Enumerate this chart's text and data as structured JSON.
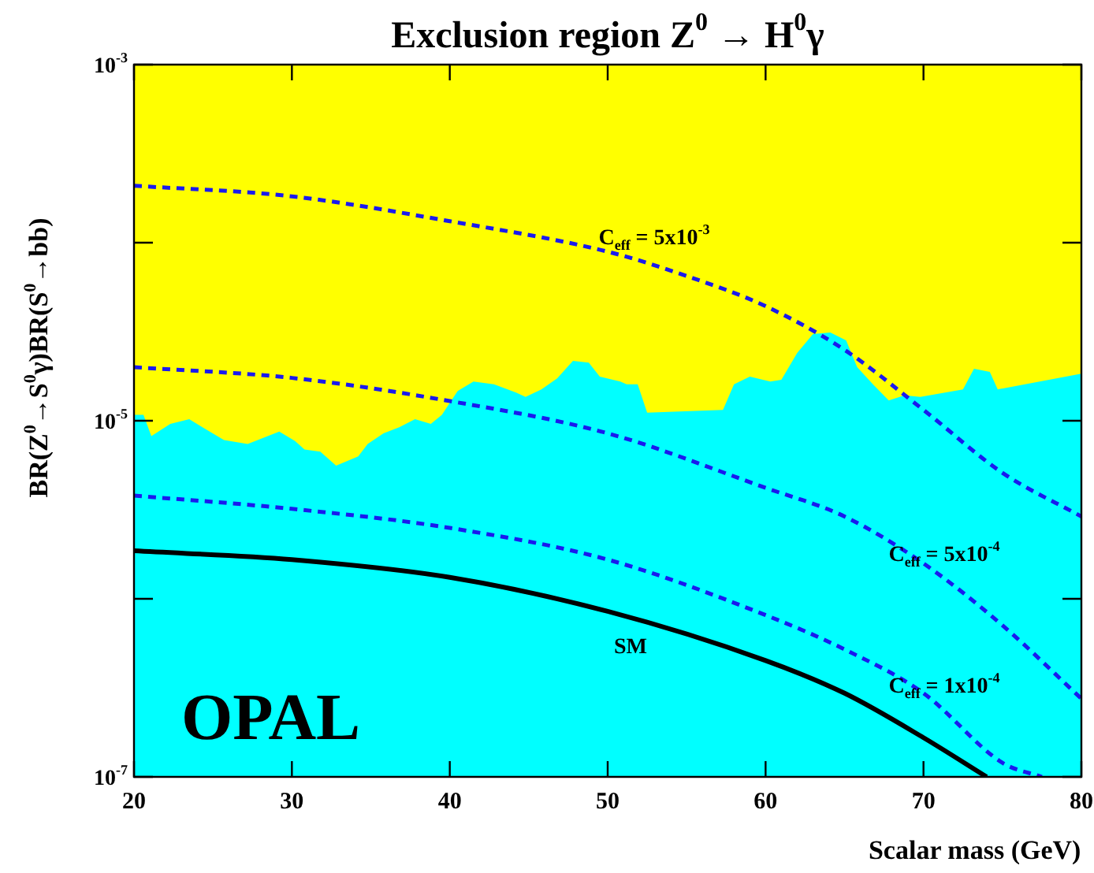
{
  "chart_data": {
    "type": "line",
    "title": "Exclusion region Z$^{0}$ → H$^{0}$γ",
    "xlabel": "Scalar mass (GeV)",
    "ylabel": "BR(Z$^{0}$→S$^{0}$γ)BR(S$^{0}$→bb)",
    "xlim": [
      20,
      80
    ],
    "xticks": [
      20,
      30,
      40,
      50,
      60,
      70,
      80
    ],
    "ylim": [
      1e-07,
      0.001
    ],
    "yticks": [
      {
        "value": 0.001,
        "label": "10$^{-3}$"
      },
      {
        "value": 0.0001,
        "label": null
      },
      {
        "value": 1e-05,
        "label": "10$^{-5}$"
      },
      {
        "value": 1e-06,
        "label": null
      },
      {
        "value": 1e-07,
        "label": "10$^{-7}$"
      }
    ],
    "log": true,
    "legend": false,
    "marker": "none",
    "bands": [
      {
        "axis": "y",
        "from": 1e-07,
        "to": 0.001,
        "color": "#ffff00"
      }
    ],
    "series": [
      {
        "type": "area",
        "color": "#00ffff",
        "x": [
          20,
          20.6,
          21.1,
          22.3,
          23.5,
          24.5,
          25.7,
          27.2,
          29.2,
          30.2,
          30.8,
          31.8,
          32.8,
          34.2,
          34.8,
          35.8,
          36.8,
          37.8,
          38.8,
          39.5,
          40.5,
          41.5,
          42.8,
          44.2,
          44.8,
          45.8,
          46.8,
          47.8,
          48.8,
          49.5,
          50.8,
          51.2,
          51.9,
          52.5,
          57.3,
          58,
          59,
          60.3,
          61,
          62,
          63,
          64.1,
          65.1,
          65.8,
          66.8,
          67.8,
          68.8,
          69.8,
          72.5,
          73.2,
          74.2,
          74.7,
          80
        ],
        "values": [
          1.08e-05,
          1.08e-05,
          8.2e-06,
          9.6e-06,
          1.02e-05,
          9e-06,
          7.8e-06,
          7.4e-06,
          8.7e-06,
          7.7e-06,
          6.9e-06,
          6.7e-06,
          5.6e-06,
          6.3e-06,
          7.4e-06,
          8.5e-06,
          9.2e-06,
          1.02e-05,
          9.6e-06,
          1.08e-05,
          1.47e-05,
          1.66e-05,
          1.6e-05,
          1.44e-05,
          1.36e-05,
          1.5e-05,
          1.73e-05,
          2.17e-05,
          2.12e-05,
          1.77e-05,
          1.66e-05,
          1.6e-05,
          1.6e-05,
          1.11e-05,
          1.15e-05,
          1.6e-05,
          1.77e-05,
          1.66e-05,
          1.7e-05,
          2.4e-05,
          3.07e-05,
          3.13e-05,
          2.83e-05,
          2e-05,
          1.6e-05,
          1.3e-05,
          1.39e-05,
          1.36e-05,
          1.5e-05,
          1.96e-05,
          1.88e-05,
          1.5e-05,
          1.84e-05
        ]
      },
      {
        "type": "line",
        "name": "C$_{eff}$ = 5x10$^{-3}$",
        "color": "#1a1aee",
        "line_style": "dashed",
        "x": [
          20,
          30,
          40,
          50,
          55,
          60,
          65,
          70,
          75,
          80
        ],
        "values": [
          0.000209,
          0.000182,
          0.000132,
          8.9e-05,
          6.5e-05,
          4.4e-05,
          2.5e-05,
          1.15e-05,
          5.1e-06,
          2.9e-06
        ]
      },
      {
        "type": "line",
        "name": "C$_{eff}$ = 5x10$^{-4}$",
        "color": "#1a1aee",
        "line_style": "dashed",
        "x": [
          20,
          30,
          40,
          50,
          60,
          65,
          70,
          75,
          80
        ],
        "values": [
          2e-05,
          1.74e-05,
          1.29e-05,
          8.5e-06,
          4.2e-06,
          2.9e-06,
          1.58e-06,
          7.1e-07,
          2.75e-07
        ]
      },
      {
        "type": "line",
        "name": "C$_{eff}$ = 1x10$^{-4}$",
        "color": "#1a1aee",
        "line_style": "dashed",
        "x": [
          20,
          30,
          40,
          50,
          60,
          65,
          70,
          75,
          77.5
        ],
        "values": [
          3.8e-06,
          3.2e-06,
          2.5e-06,
          1.66e-06,
          8.1e-07,
          5.2e-07,
          2.95e-07,
          1.2e-07,
          1e-07
        ]
      },
      {
        "type": "line",
        "name": "SM",
        "color": "#000000",
        "line_style": "solid",
        "x": [
          20,
          30,
          40,
          50,
          60,
          65,
          70,
          74
        ],
        "values": [
          1.86e-06,
          1.66e-06,
          1.32e-06,
          8.5e-07,
          4.5e-07,
          2.95e-07,
          1.66e-07,
          1e-07
        ]
      }
    ],
    "annotations": [
      "OPAL"
    ]
  }
}
